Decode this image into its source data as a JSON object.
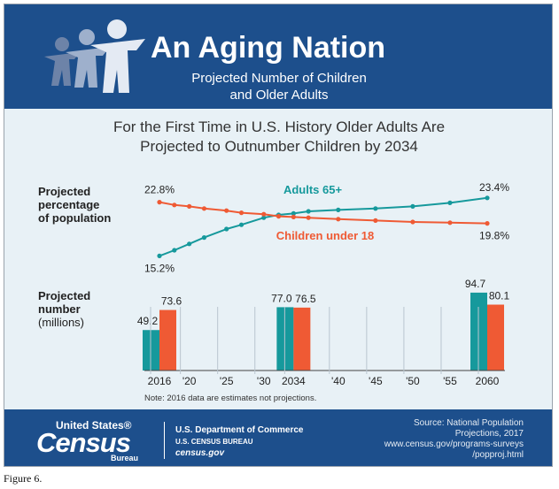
{
  "header": {
    "title": "An Aging Nation",
    "subtitle_line1": "Projected Number of Children",
    "subtitle_line2": "and Older Adults"
  },
  "headline_line1": "For the First Time in U.S. History Older Adults Are",
  "headline_line2": "Projected to Outnumber Children by 2034",
  "panels": {
    "percentage_label_line1": "Projected",
    "percentage_label_line2": "percentage",
    "percentage_label_line3": "of population",
    "number_label_line1": "Projected",
    "number_label_line2": "number",
    "number_label_line3": "(millions)"
  },
  "note": "Note: 2016 data are estimates not projections.",
  "footer": {
    "logo_top": "United States®",
    "logo_main": "Census",
    "logo_bottom": "Bureau",
    "department": "U.S. Department of Commerce",
    "bureau": "U.S. CENSUS BUREAU",
    "website": "census.gov",
    "source_line1": "Source: National Population",
    "source_line2": "Projections, 2017",
    "source_line3": "www.census.gov/programs-surveys",
    "source_line4": "/popproj.html"
  },
  "caption": "Figure 6.",
  "colors": {
    "adults": "#16999c",
    "children": "#ef5a34",
    "header_bg": "#1d4f8c",
    "panel_bg": "#e8f1f6"
  },
  "chart_data": [
    {
      "type": "line",
      "x": [
        2016,
        2018,
        2020,
        2022,
        2025,
        2027,
        2030,
        2032,
        2034,
        2036,
        2040,
        2045,
        2050,
        2055,
        2060
      ],
      "series": [
        {
          "name": "Adults 65+",
          "values": [
            15.2,
            16.0,
            16.9,
            17.8,
            19.0,
            19.6,
            20.6,
            21.0,
            21.2,
            21.5,
            21.7,
            21.9,
            22.2,
            22.7,
            23.4
          ],
          "labels": {
            "2016": "15.2%",
            "2060": "23.4%"
          }
        },
        {
          "name": "Children under 18",
          "values": [
            22.8,
            22.4,
            22.2,
            21.9,
            21.6,
            21.3,
            21.1,
            20.8,
            20.7,
            20.6,
            20.4,
            20.2,
            20.0,
            19.9,
            19.8
          ],
          "labels": {
            "2016": "22.8%",
            "2060": "19.8%"
          }
        }
      ],
      "ylim": [
        15,
        24
      ]
    },
    {
      "type": "bar",
      "categories": [
        "2016",
        "2034",
        "2060"
      ],
      "series": [
        {
          "name": "Adults 65+",
          "values": [
            49.2,
            77.0,
            94.7
          ],
          "labels": [
            "49.2",
            "77.0",
            "94.7"
          ]
        },
        {
          "name": "Children under 18",
          "values": [
            73.6,
            76.5,
            80.1
          ],
          "labels": [
            "73.6",
            "76.5",
            "80.1"
          ]
        }
      ],
      "x_ticks": [
        "2016",
        "'20",
        "'25",
        "'30",
        "2034",
        "'40",
        "'45",
        "'50",
        "'55",
        "2060"
      ],
      "ylim": [
        0,
        100
      ]
    }
  ]
}
